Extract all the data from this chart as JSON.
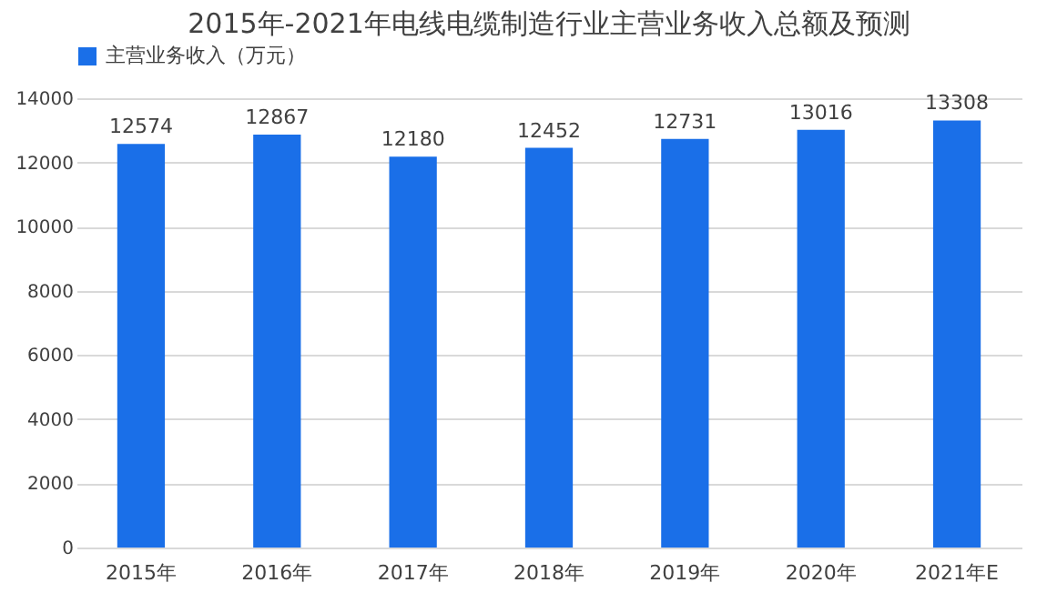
{
  "chart_data": {
    "type": "bar",
    "title": "2015年-2021年电线电缆制造行业主营业务收入总额及预测",
    "categories": [
      "2015年",
      "2016年",
      "2017年",
      "2018年",
      "2019年",
      "2020年",
      "2021年E"
    ],
    "series": [
      {
        "name": "主营业务收入（万元）",
        "color": "#1a6fe8",
        "values": [
          12574,
          12867,
          12180,
          12452,
          12731,
          13016,
          13308
        ]
      }
    ],
    "ylim": [
      0,
      14000
    ],
    "yticks": [
      0,
      2000,
      4000,
      6000,
      8000,
      10000,
      12000,
      14000
    ],
    "grid": "y",
    "legend": "top",
    "data_labels": true
  }
}
